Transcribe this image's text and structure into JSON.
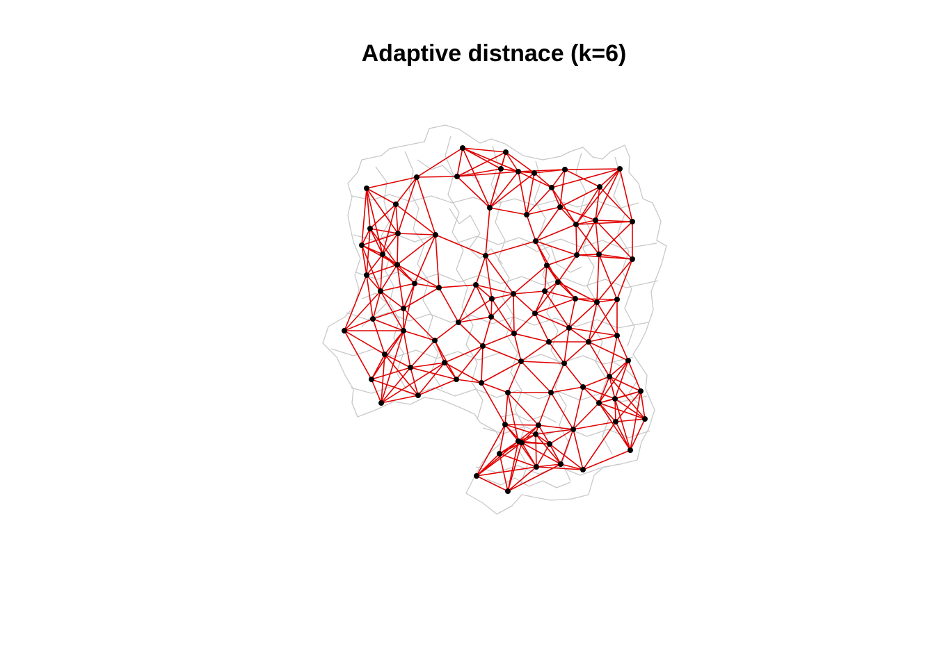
{
  "title": "Adaptive distnace (k=6)",
  "colors": {
    "background": "#ffffff",
    "boundary": "#c8c8c8",
    "edges": "#e00000",
    "nodes": "#000000"
  },
  "legend": "none",
  "chart_data": {
    "type": "network",
    "title": "Adaptive distnace (k=6)",
    "k": 6,
    "node_count": 91
  }
}
